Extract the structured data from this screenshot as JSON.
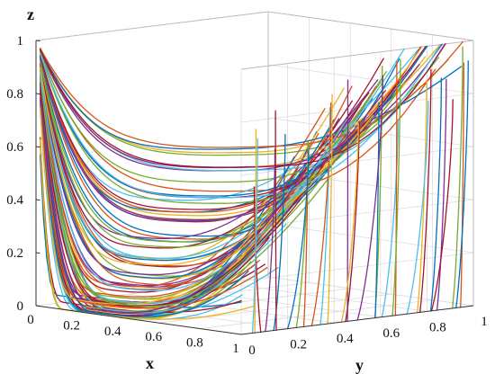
{
  "chart_data": {
    "type": "line",
    "subtype": "3d-trajectories",
    "xlabel": "x",
    "ylabel": "y",
    "zlabel": "z",
    "xlim": [
      0,
      1
    ],
    "ylim": [
      0,
      1
    ],
    "zlim": [
      0,
      1
    ],
    "x_ticks": [
      "0",
      "0.2",
      "0.4",
      "0.6",
      "0.8",
      "1"
    ],
    "y_ticks": [
      "0",
      "0.2",
      "0.4",
      "0.6",
      "0.8",
      "1"
    ],
    "z_ticks": [
      "0",
      "0.2",
      "0.4",
      "0.6",
      "0.8",
      "1"
    ],
    "grid": true,
    "box": "partial",
    "palette": [
      "#0072BD",
      "#D95319",
      "#EDB120",
      "#7E2F8E",
      "#77AC30",
      "#4DBEEE",
      "#A2142F"
    ],
    "series_group_a": {
      "description": "trajectories starting near (0,0,1), falling to z~0 then rising near x=1",
      "start": [
        0.0,
        0.0,
        1.0
      ],
      "x_of_min_z": [
        0.18,
        0.22,
        0.27,
        0.32,
        0.36,
        0.41,
        0.46,
        0.52,
        0.58,
        0.63,
        0.69,
        0.74
      ],
      "min_z": [
        0.0,
        0.01,
        0.03,
        0.05,
        0.08,
        0.12,
        0.18,
        0.25,
        0.33,
        0.42,
        0.52,
        0.62
      ],
      "end_y": [
        0.02,
        0.1,
        0.18,
        0.26,
        0.34,
        0.42,
        0.5,
        0.58,
        0.66,
        0.74,
        0.82,
        0.9
      ],
      "end_z": [
        0.18,
        0.32,
        0.45,
        0.56,
        0.65,
        0.73,
        0.8,
        0.86,
        0.91,
        0.95,
        0.98,
        1.0
      ]
    },
    "series_group_b": {
      "description": "trajectories on the x=1 face rising from the floor toward the top",
      "start_y": [
        0.02,
        0.1,
        0.2,
        0.3,
        0.4,
        0.5,
        0.6,
        0.7,
        0.8,
        0.9
      ],
      "end_y": [
        0.05,
        0.14,
        0.24,
        0.34,
        0.45,
        0.55,
        0.66,
        0.76,
        0.86,
        0.95
      ],
      "end_z": [
        0.78,
        0.84,
        0.88,
        0.91,
        0.94,
        0.96,
        0.97,
        0.98,
        0.99,
        1.0
      ]
    }
  }
}
